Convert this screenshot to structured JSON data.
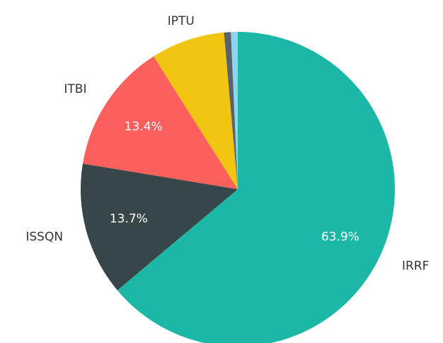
{
  "chart_data": {
    "type": "pie",
    "categories": [
      "IRRF",
      "ISSQN",
      "ITBI",
      "IPTU",
      null,
      null
    ],
    "values": [
      63.9,
      13.7,
      13.4,
      7.6,
      0.7,
      0.7
    ],
    "value_labels": [
      "63.9%",
      "13.7%",
      "13.4%",
      null,
      null,
      null
    ],
    "colors": [
      "#1bb8a8",
      "#364649",
      "#fd5f5c",
      "#f2c512",
      "#59636a",
      "#8fd3f0"
    ]
  }
}
